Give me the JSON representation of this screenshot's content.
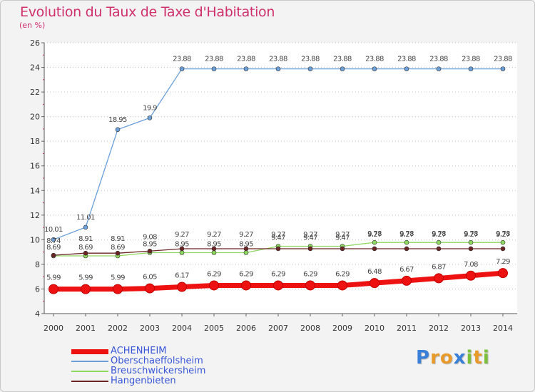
{
  "title": "Evolution du Taux de Taxe d'Habitation",
  "unit": "(en %)",
  "logo": {
    "letters": [
      "P",
      "r",
      "o",
      "x",
      "i",
      "t",
      "i"
    ],
    "colors": [
      "#3a7fd8",
      "#e89a2a",
      "#e89a2a",
      "#3a7fd8",
      "#7bbf3a",
      "#e89a2a",
      "#7bbf3a"
    ]
  },
  "chart_data": {
    "type": "line",
    "x": [
      2000,
      2001,
      2002,
      2003,
      2004,
      2005,
      2006,
      2007,
      2008,
      2009,
      2010,
      2011,
      2012,
      2013,
      2014
    ],
    "x_tick_labels": [
      "2000",
      "2001",
      "2002",
      "2003",
      "2004",
      "2005",
      "2006",
      "2007",
      "2008",
      "2009",
      "2010",
      "2011",
      "2012",
      "2013",
      "2014"
    ],
    "ylim": [
      4,
      26
    ],
    "y_ticks": [
      4,
      6,
      8,
      10,
      12,
      14,
      16,
      18,
      20,
      22,
      24,
      26
    ],
    "y_tick_labels": [
      "4",
      "6",
      "8",
      "10",
      "12",
      "14",
      "16",
      "18",
      "20",
      "22",
      "24",
      "26"
    ],
    "grid": "horizontal-dotted",
    "legend_position": "bottom-left",
    "series": [
      {
        "name": "ACHENHEIM",
        "color": "#ee1111",
        "values": [
          5.99,
          5.99,
          5.99,
          6.05,
          6.17,
          6.29,
          6.29,
          6.29,
          6.29,
          6.29,
          6.48,
          6.67,
          6.87,
          7.08,
          7.29
        ],
        "labels": [
          "5.99",
          "5.99",
          "5.99",
          "6.05",
          "6.17",
          "6.29",
          "6.29",
          "6.29",
          "6.29",
          "6.29",
          "6.48",
          "6.67",
          "6.87",
          "7.08",
          "7.29"
        ]
      },
      {
        "name": "Oberschaeffolsheim",
        "color": "#6a9fd8",
        "values": [
          10.01,
          11.01,
          18.95,
          19.9,
          23.88,
          23.88,
          23.88,
          23.88,
          23.88,
          23.88,
          23.88,
          23.88,
          23.88,
          23.88,
          23.88
        ],
        "labels": [
          "10.01",
          "11.01",
          "18.95",
          "19.9",
          "23.88",
          "23.88",
          "23.88",
          "23.88",
          "23.88",
          "23.88",
          "23.88",
          "23.88",
          "23.88",
          "23.88",
          "23.88"
        ]
      },
      {
        "name": "Breuschwickersheim",
        "color": "#8fd860",
        "values": [
          8.69,
          8.69,
          8.69,
          8.95,
          8.95,
          8.95,
          8.95,
          9.47,
          9.47,
          9.47,
          9.78,
          9.78,
          9.78,
          9.78,
          9.78
        ],
        "labels": [
          "8.69",
          "8.69",
          "8.69",
          "8.95",
          "8.95",
          "8.95",
          "8.95",
          "9.47",
          "9.47",
          "9.47",
          "9.78",
          "9.78",
          "9.78",
          "9.78",
          "9.78"
        ]
      },
      {
        "name": "Hangenbieten",
        "color": "#6b2424",
        "values": [
          8.74,
          8.91,
          8.91,
          9.08,
          9.27,
          9.27,
          9.27,
          9.27,
          9.27,
          9.27,
          9.27,
          9.27,
          9.27,
          9.27,
          9.27
        ],
        "labels": [
          "8.74",
          "8.91",
          "8.91",
          "9.08",
          "9.27",
          "9.27",
          "9.27",
          "9.27",
          "9.27",
          "9.27",
          "9.27",
          "9.27",
          "9.27",
          "9.27",
          "9.27"
        ]
      }
    ]
  }
}
